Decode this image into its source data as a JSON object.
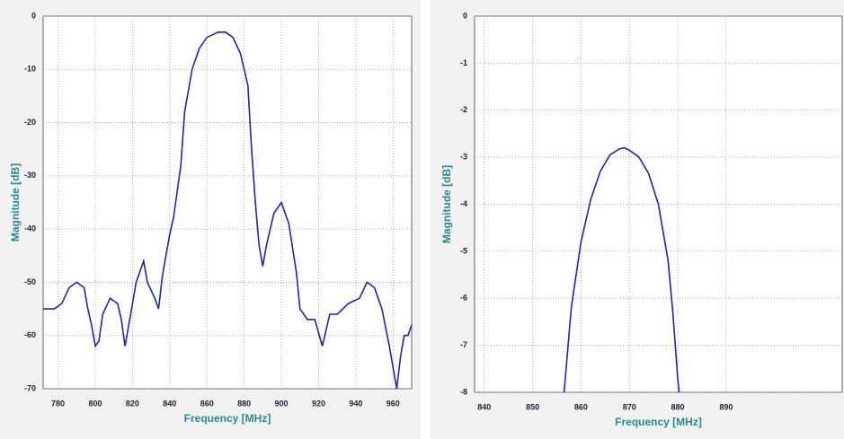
{
  "chart_data": [
    {
      "type": "line",
      "x_label": "Frequency [MHz]",
      "y_label": "Magnitude [dB]",
      "xlim": [
        772,
        970
      ],
      "ylim": [
        -70,
        0
      ],
      "xticks": [
        780,
        800,
        820,
        840,
        860,
        880,
        900,
        920,
        940,
        960
      ],
      "yticks": [
        0,
        -10,
        -20,
        -30,
        -40,
        -50,
        -60,
        -70
      ],
      "grid": true,
      "series": [
        {
          "color": "#2323b0",
          "x": [
            772,
            778,
            782,
            786,
            790,
            794,
            796,
            798,
            800,
            802,
            804,
            808,
            812,
            814,
            816,
            818,
            822,
            826,
            828,
            832,
            834,
            836,
            840,
            842,
            844,
            846,
            848,
            852,
            856,
            860,
            866,
            870,
            874,
            878,
            882,
            884,
            886,
            888,
            890,
            892,
            896,
            900,
            904,
            908,
            910,
            914,
            918,
            922,
            926,
            930,
            936,
            942,
            946,
            950,
            954,
            958,
            962,
            964,
            966,
            968,
            970
          ],
          "values": [
            -55,
            -55,
            -54,
            -51,
            -50,
            -51,
            -55,
            -58,
            -62,
            -61,
            -56,
            -53,
            -54,
            -57,
            -62,
            -58,
            -50,
            -46,
            -50,
            -53,
            -55,
            -49,
            -41,
            -38,
            -33,
            -28,
            -18,
            -10,
            -6,
            -4,
            -3,
            -3,
            -4,
            -7,
            -13,
            -25,
            -35,
            -43,
            -47,
            -43,
            -37,
            -35,
            -39,
            -48,
            -55,
            -57,
            -57,
            -62,
            -56,
            -56,
            -54,
            -53,
            -50,
            -51,
            -55,
            -62,
            -70,
            -64,
            -60,
            -60,
            -58
          ]
        }
      ]
    },
    {
      "type": "line",
      "x_label": "Frequency [MHz]",
      "y_label": "Magnitude [dB]",
      "xlim": [
        838,
        914
      ],
      "ylim": [
        -8,
        0
      ],
      "xticks": [
        840,
        850,
        860,
        870,
        880,
        890
      ],
      "yticks": [
        0,
        -1,
        -2,
        -3,
        -4,
        -5,
        -6,
        -7,
        -8
      ],
      "grid": true,
      "series": [
        {
          "color": "#2323b0",
          "x": [
            856.5,
            858,
            860,
            862,
            864,
            866,
            868,
            869,
            870,
            872,
            874,
            876,
            878,
            879,
            880,
            880.3
          ],
          "values": [
            -8,
            -6.2,
            -4.8,
            -3.9,
            -3.3,
            -2.95,
            -2.82,
            -2.8,
            -2.85,
            -3.0,
            -3.35,
            -4.0,
            -5.2,
            -6.3,
            -7.7,
            -8
          ]
        }
      ]
    }
  ]
}
